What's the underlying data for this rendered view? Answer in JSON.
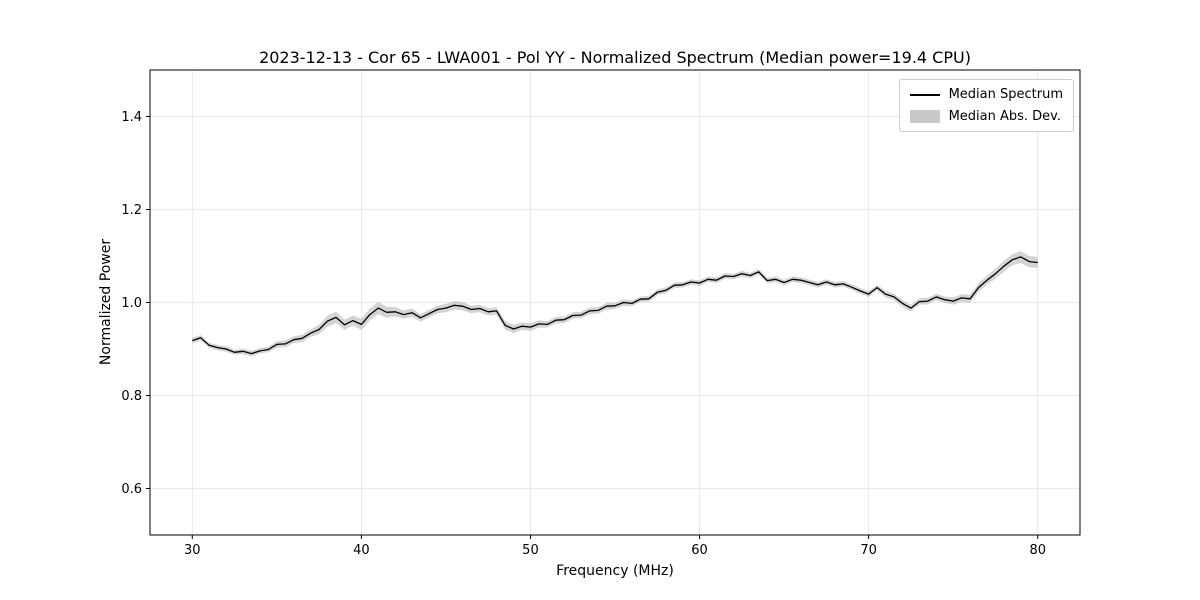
{
  "figure": {
    "title": "2023-12-13 - Cor 65 - LWA001 - Pol YY - Normalized Spectrum (Median power=19.4 CPU)",
    "xlabel": "Frequency (MHz)",
    "ylabel": "Normalized Power"
  },
  "legend": {
    "position": "upper right",
    "items": [
      {
        "label": "Median Spectrum",
        "type": "line",
        "color": "#000000"
      },
      {
        "label": "Median Abs. Dev.",
        "type": "patch",
        "color": "#c9c9c9"
      }
    ]
  },
  "colors": {
    "line": "#000000",
    "band": "#b0b0b0",
    "grid": "#e2e2e2",
    "axis": "#000000",
    "background": "#ffffff"
  },
  "chart_data": {
    "type": "line",
    "title": "2023-12-13 - Cor 65 - LWA001 - Pol YY - Normalized Spectrum (Median power=19.4 CPU)",
    "xlabel": "Frequency (MHz)",
    "ylabel": "Normalized Power",
    "xlim": [
      27.5,
      82.5
    ],
    "ylim": [
      0.5,
      1.5
    ],
    "xticks": [
      30,
      40,
      50,
      60,
      70,
      80
    ],
    "xtick_labels": [
      "30",
      "40",
      "50",
      "60",
      "70",
      "80"
    ],
    "yticks": [
      0.6,
      0.8,
      1.0,
      1.2,
      1.4
    ],
    "ytick_labels": [
      "0.6",
      "0.8",
      "1.0",
      "1.2",
      "1.4"
    ],
    "grid": true,
    "legend_position": "upper right",
    "median_power_cpu": 19.4,
    "series": [
      {
        "name": "Median Spectrum",
        "x": [
          30,
          30.5,
          31,
          31.5,
          32,
          32.5,
          33,
          33.5,
          34,
          34.5,
          35,
          35.5,
          36,
          36.5,
          37,
          37.5,
          38,
          38.5,
          39,
          39.5,
          40,
          40.5,
          41,
          41.5,
          42,
          42.5,
          43,
          43.5,
          44,
          44.5,
          45,
          45.5,
          46,
          46.5,
          47,
          47.5,
          48,
          48.5,
          49,
          49.5,
          50,
          50.5,
          51,
          51.5,
          52,
          52.5,
          53,
          53.5,
          54,
          54.5,
          55,
          55.5,
          56,
          56.5,
          57,
          57.5,
          58,
          58.5,
          59,
          59.5,
          60,
          60.5,
          61,
          61.5,
          62,
          62.5,
          63,
          63.5,
          64,
          64.5,
          65,
          65.5,
          66,
          66.5,
          67,
          67.5,
          68,
          68.5,
          69,
          69.5,
          70,
          70.5,
          71,
          71.5,
          72,
          72.5,
          73,
          73.5,
          74,
          74.5,
          75,
          75.5,
          76,
          76.5,
          77,
          77.5,
          78,
          78.5,
          79,
          79.5,
          80
        ],
        "y": [
          0.918,
          0.924,
          0.908,
          0.903,
          0.9,
          0.893,
          0.895,
          0.89,
          0.896,
          0.899,
          0.91,
          0.911,
          0.92,
          0.923,
          0.934,
          0.942,
          0.96,
          0.968,
          0.952,
          0.961,
          0.953,
          0.974,
          0.988,
          0.979,
          0.98,
          0.974,
          0.978,
          0.967,
          0.976,
          0.985,
          0.988,
          0.994,
          0.992,
          0.985,
          0.987,
          0.98,
          0.982,
          0.951,
          0.943,
          0.949,
          0.947,
          0.954,
          0.953,
          0.962,
          0.963,
          0.972,
          0.973,
          0.982,
          0.983,
          0.992,
          0.993,
          1.0,
          0.998,
          1.007,
          1.008,
          1.022,
          1.026,
          1.037,
          1.038,
          1.044,
          1.042,
          1.05,
          1.048,
          1.057,
          1.056,
          1.062,
          1.058,
          1.066,
          1.047,
          1.05,
          1.043,
          1.05,
          1.048,
          1.043,
          1.038,
          1.044,
          1.038,
          1.04,
          1.033,
          1.025,
          1.018,
          1.032,
          1.018,
          1.012,
          0.998,
          0.988,
          1.002,
          1.003,
          1.012,
          1.006,
          1.003,
          1.01,
          1.008,
          1.032,
          1.048,
          1.062,
          1.078,
          1.092,
          1.098,
          1.088,
          1.086
        ]
      },
      {
        "name": "Median Abs. Dev.",
        "mad": [
          0.006,
          0.006,
          0.005,
          0.006,
          0.006,
          0.005,
          0.006,
          0.006,
          0.006,
          0.006,
          0.007,
          0.007,
          0.007,
          0.008,
          0.008,
          0.01,
          0.012,
          0.012,
          0.011,
          0.011,
          0.012,
          0.013,
          0.013,
          0.012,
          0.01,
          0.009,
          0.009,
          0.008,
          0.008,
          0.008,
          0.009,
          0.009,
          0.009,
          0.008,
          0.008,
          0.008,
          0.008,
          0.009,
          0.009,
          0.008,
          0.008,
          0.008,
          0.007,
          0.007,
          0.007,
          0.007,
          0.007,
          0.007,
          0.007,
          0.007,
          0.007,
          0.007,
          0.006,
          0.006,
          0.006,
          0.006,
          0.006,
          0.006,
          0.006,
          0.006,
          0.006,
          0.006,
          0.006,
          0.006,
          0.006,
          0.006,
          0.006,
          0.006,
          0.006,
          0.006,
          0.006,
          0.006,
          0.006,
          0.006,
          0.006,
          0.006,
          0.006,
          0.006,
          0.006,
          0.006,
          0.006,
          0.006,
          0.007,
          0.007,
          0.007,
          0.007,
          0.007,
          0.007,
          0.007,
          0.007,
          0.008,
          0.008,
          0.009,
          0.009,
          0.01,
          0.011,
          0.012,
          0.012,
          0.013,
          0.012,
          0.012
        ]
      }
    ]
  }
}
